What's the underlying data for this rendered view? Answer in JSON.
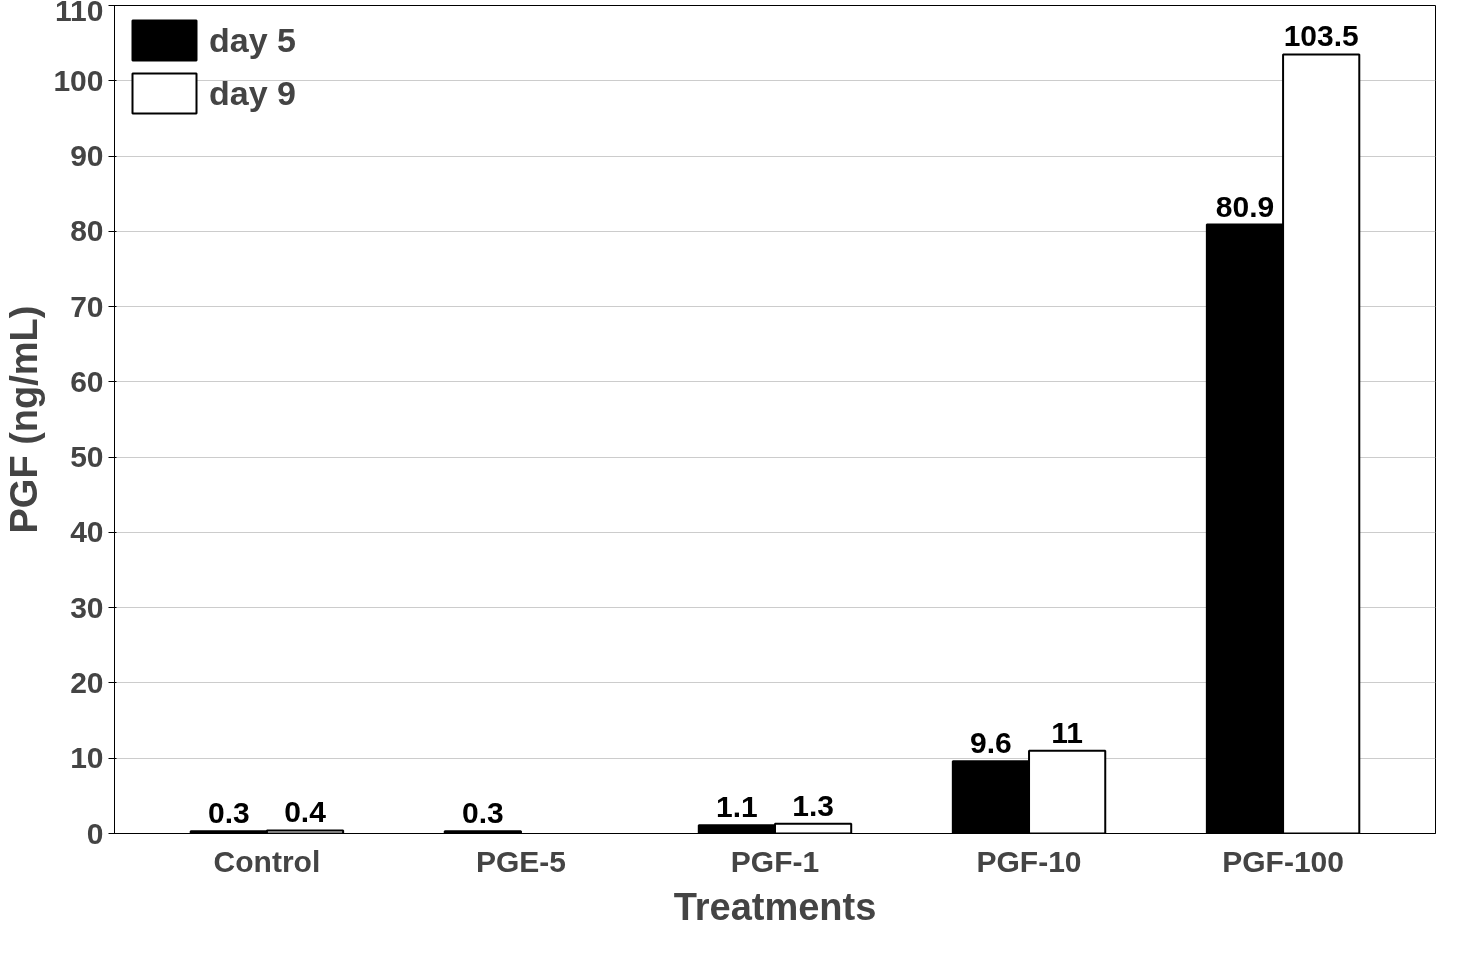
{
  "chart_data": {
    "type": "bar",
    "xlabel": "Treatments",
    "ylabel": "PGF (ng/mL)",
    "categories": [
      "Control",
      "PGE-5",
      "PGF-1",
      "PGF-10",
      "PGF-100"
    ],
    "series": [
      {
        "name": "day 5",
        "color": "#000000",
        "values": [
          0.3,
          0.3,
          1.1,
          9.6,
          80.9
        ]
      },
      {
        "name": "day 9",
        "color": "#ffffff",
        "values": [
          0.4,
          null,
          1.3,
          11,
          103.5
        ]
      }
    ],
    "ylim": [
      0,
      110
    ],
    "yticks": [
      0,
      10,
      20,
      30,
      40,
      50,
      60,
      70,
      80,
      90,
      100,
      110
    ],
    "grid": "y",
    "legend": "top left",
    "data_labels": true
  }
}
